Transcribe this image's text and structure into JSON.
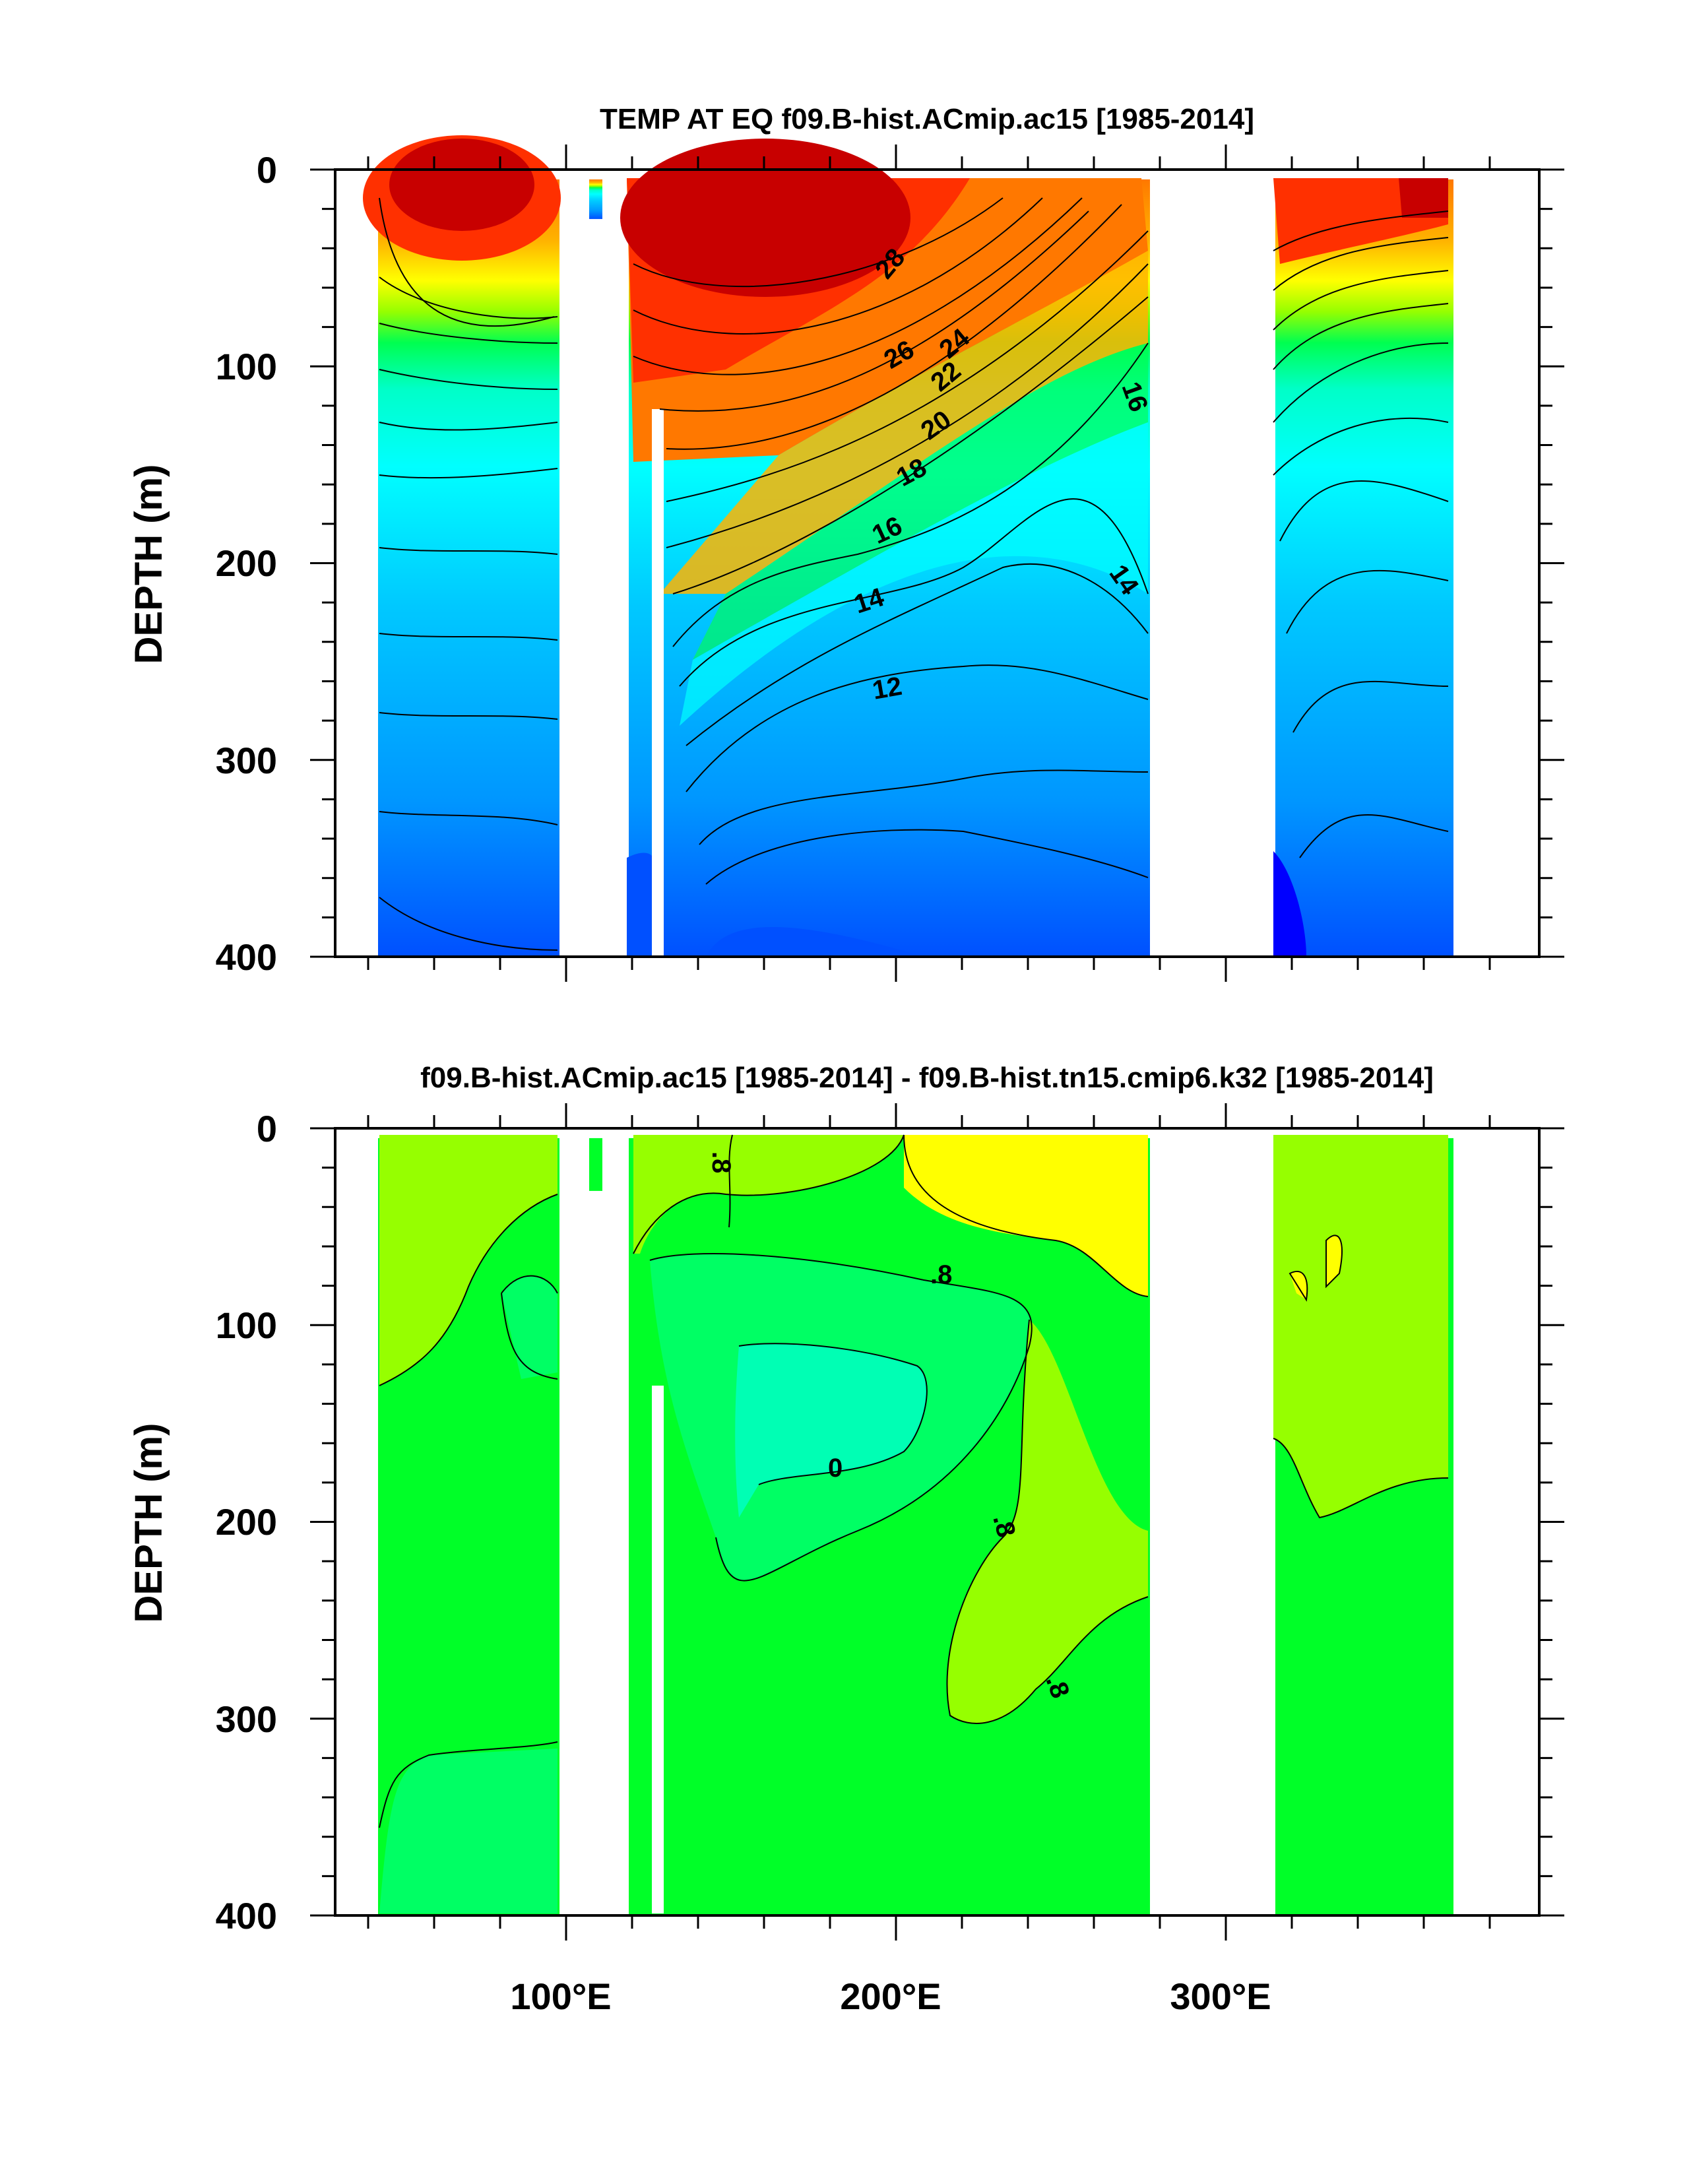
{
  "chart_data": [
    {
      "type": "heatmap",
      "title": "TEMP AT EQ f09.B-hist.ACmip.ac15 [1985-2014]",
      "xlabel": "",
      "ylabel": "DEPTH (m)",
      "xlim": [
        30,
        395
      ],
      "ylim": [
        400,
        0
      ],
      "x_ticks": [],
      "y_ticks": [
        "0",
        "100",
        "200",
        "300",
        "400"
      ],
      "ocean_segments_lon": [
        [
          43,
          98
        ],
        [
          107,
          111
        ],
        [
          119,
          277
        ],
        [
          315,
          369
        ]
      ],
      "depth_levels": [
        0,
        50,
        100,
        150,
        200,
        250,
        300,
        350,
        400
      ],
      "contour_labels": [
        "28",
        "26",
        "24",
        "22",
        "20",
        "18",
        "16",
        "16",
        "14",
        "14",
        "12"
      ],
      "colors": [
        "#c80000",
        "#ff3000",
        "#ff7800",
        "#ffb400",
        "#ffff00",
        "#96ff00",
        "#00ff50",
        "#00ffc8",
        "#00ffff",
        "#00c8ff",
        "#0096ff",
        "#0050ff",
        "#0000ff"
      ]
    },
    {
      "type": "heatmap",
      "title": "f09.B-hist.ACmip.ac15 [1985-2014] - f09.B-hist.tn15.cmip6.k32 [1985-2014]",
      "xlabel": "",
      "ylabel": "DEPTH (m)",
      "xlim": [
        30,
        395
      ],
      "ylim": [
        400,
        0
      ],
      "x_ticks": [
        "100°E",
        "200°E",
        "300°E"
      ],
      "y_ticks": [
        "0",
        "100",
        "200",
        "300",
        "400"
      ],
      "ocean_segments_lon": [
        [
          43,
          98
        ],
        [
          107,
          111
        ],
        [
          119,
          277
        ],
        [
          315,
          369
        ]
      ],
      "contour_labels": [
        ".8",
        ".8",
        "0",
        ".8",
        ".8"
      ],
      "colors": [
        "#ffff00",
        "#96ff00",
        "#00ff28",
        "#00ff64",
        "#00ffb4"
      ]
    }
  ]
}
